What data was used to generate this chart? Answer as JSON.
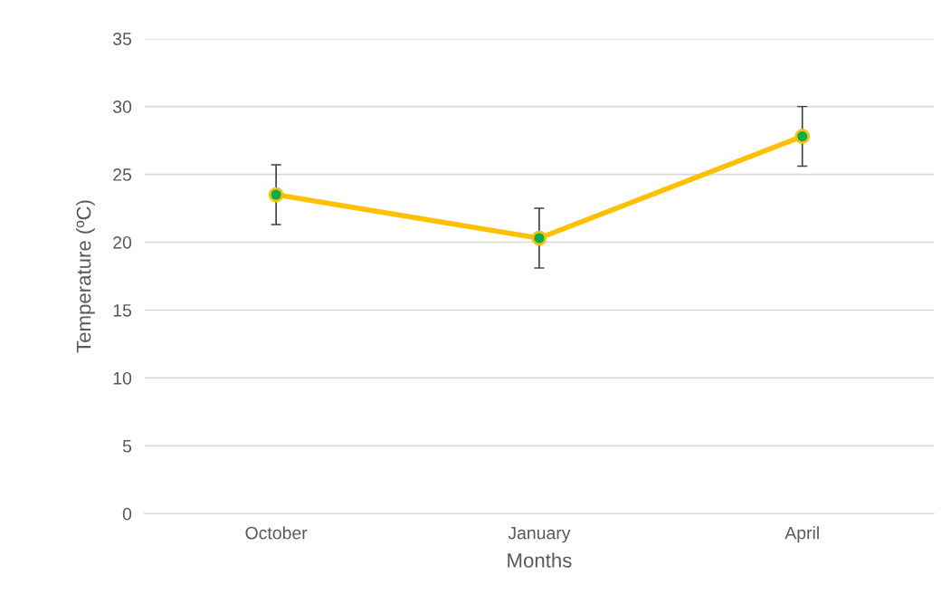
{
  "chart_data": {
    "type": "line",
    "xlabel": "Months",
    "ylabel": "Temperature (ºC)",
    "categories": [
      "October",
      "January",
      "April"
    ],
    "series": [
      {
        "color": "#ffc000",
        "colors": [
          "#00b050",
          "#00b050",
          "#00b050"
        ],
        "values": [
          23.5,
          20.3,
          27.8
        ],
        "errors": [
          2.2,
          2.2,
          2.2
        ]
      }
    ],
    "ylim": [
      0,
      35
    ],
    "yticks": [
      0,
      5,
      10,
      15,
      20,
      25,
      30,
      35
    ],
    "grid": "y",
    "marker": "circle",
    "line_style": "solid",
    "legend": false
  }
}
